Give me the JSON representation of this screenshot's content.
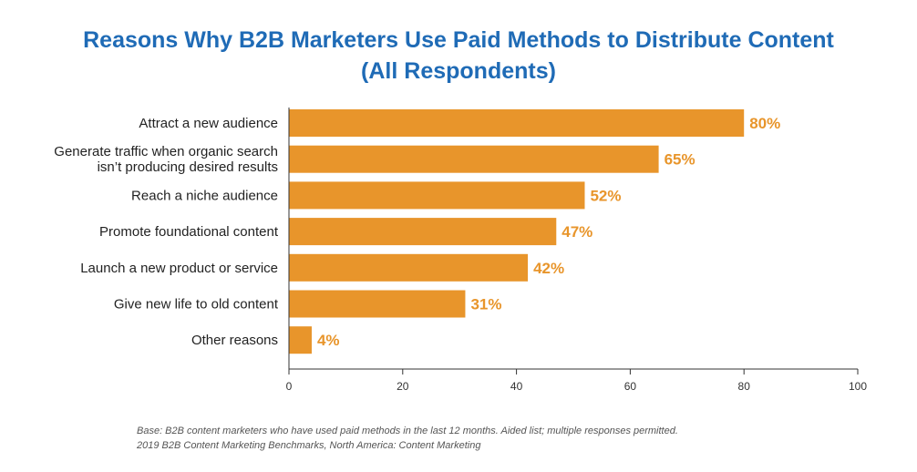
{
  "chart_data": {
    "type": "bar",
    "orientation": "horizontal",
    "title": "Reasons Why B2B Marketers Use Paid Methods to Distribute Content",
    "subtitle": "(All Respondents)",
    "categories": [
      [
        "Attract a new audience"
      ],
      [
        "Generate traffic when organic search",
        "isn’t producing desired results"
      ],
      [
        "Reach a niche audience"
      ],
      [
        "Promote foundational content"
      ],
      [
        "Launch a new product or service"
      ],
      [
        "Give new life to old content"
      ],
      [
        "Other reasons"
      ]
    ],
    "values": [
      80,
      65,
      52,
      47,
      42,
      31,
      4
    ],
    "value_labels": [
      "80%",
      "65%",
      "52%",
      "47%",
      "42%",
      "31%",
      "4%"
    ],
    "xlim": [
      0,
      100
    ],
    "x_ticks": [
      0,
      20,
      40,
      60,
      80,
      100
    ],
    "x_tick_labels": [
      "0",
      "20",
      "40",
      "60",
      "80",
      "100"
    ],
    "bar_color": "#e8952b",
    "label_color": "#e8952b",
    "title_color": "#1f6bb6",
    "grid": false
  },
  "footnotes": {
    "base": "Base: B2B content marketers who have used paid methods in the last 12 months. Aided list; multiple responses permitted.",
    "source": "2019 B2B Content Marketing Benchmarks, North America: Content Marketing"
  }
}
